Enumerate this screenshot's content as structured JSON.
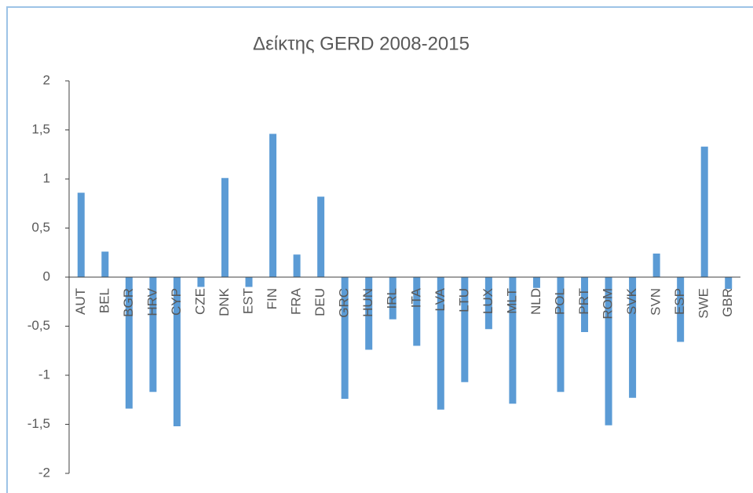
{
  "chart_data": {
    "type": "bar",
    "title": "Δείκτης GERD 2008-2015",
    "categories": [
      "AUT",
      "BEL",
      "BGR",
      "HRV",
      "CYP",
      "CZE",
      "DNK",
      "EST",
      "FIN",
      "FRA",
      "DEU",
      "GRC",
      "HUN",
      "IRL",
      "ITA",
      "LVA",
      "LTU",
      "LUX",
      "MLT",
      "NLD",
      "POL",
      "PRT",
      "ROM",
      "SVK",
      "SVN",
      "ESP",
      "SWE",
      "GBR"
    ],
    "values": [
      0.86,
      0.26,
      -1.34,
      -1.17,
      -1.52,
      -0.1,
      1.01,
      -0.1,
      1.46,
      0.23,
      0.82,
      -1.24,
      -0.74,
      -0.43,
      -0.7,
      -1.35,
      -1.07,
      -0.53,
      -1.29,
      -0.11,
      -1.17,
      -0.56,
      -1.51,
      -1.23,
      0.24,
      -0.66,
      1.33,
      -0.12
    ],
    "color": "#5b9bd5",
    "ylim": [
      -2,
      2
    ],
    "yticks": [
      2,
      {
        "value": 1.5,
        "label": "1,5"
      },
      1,
      {
        "value": 0.5,
        "label": "0,5"
      },
      0,
      {
        "value": -0.5,
        "label": "-0,5"
      },
      -1,
      {
        "value": -1.5,
        "label": "-1,5"
      },
      -2
    ],
    "grid": false
  }
}
